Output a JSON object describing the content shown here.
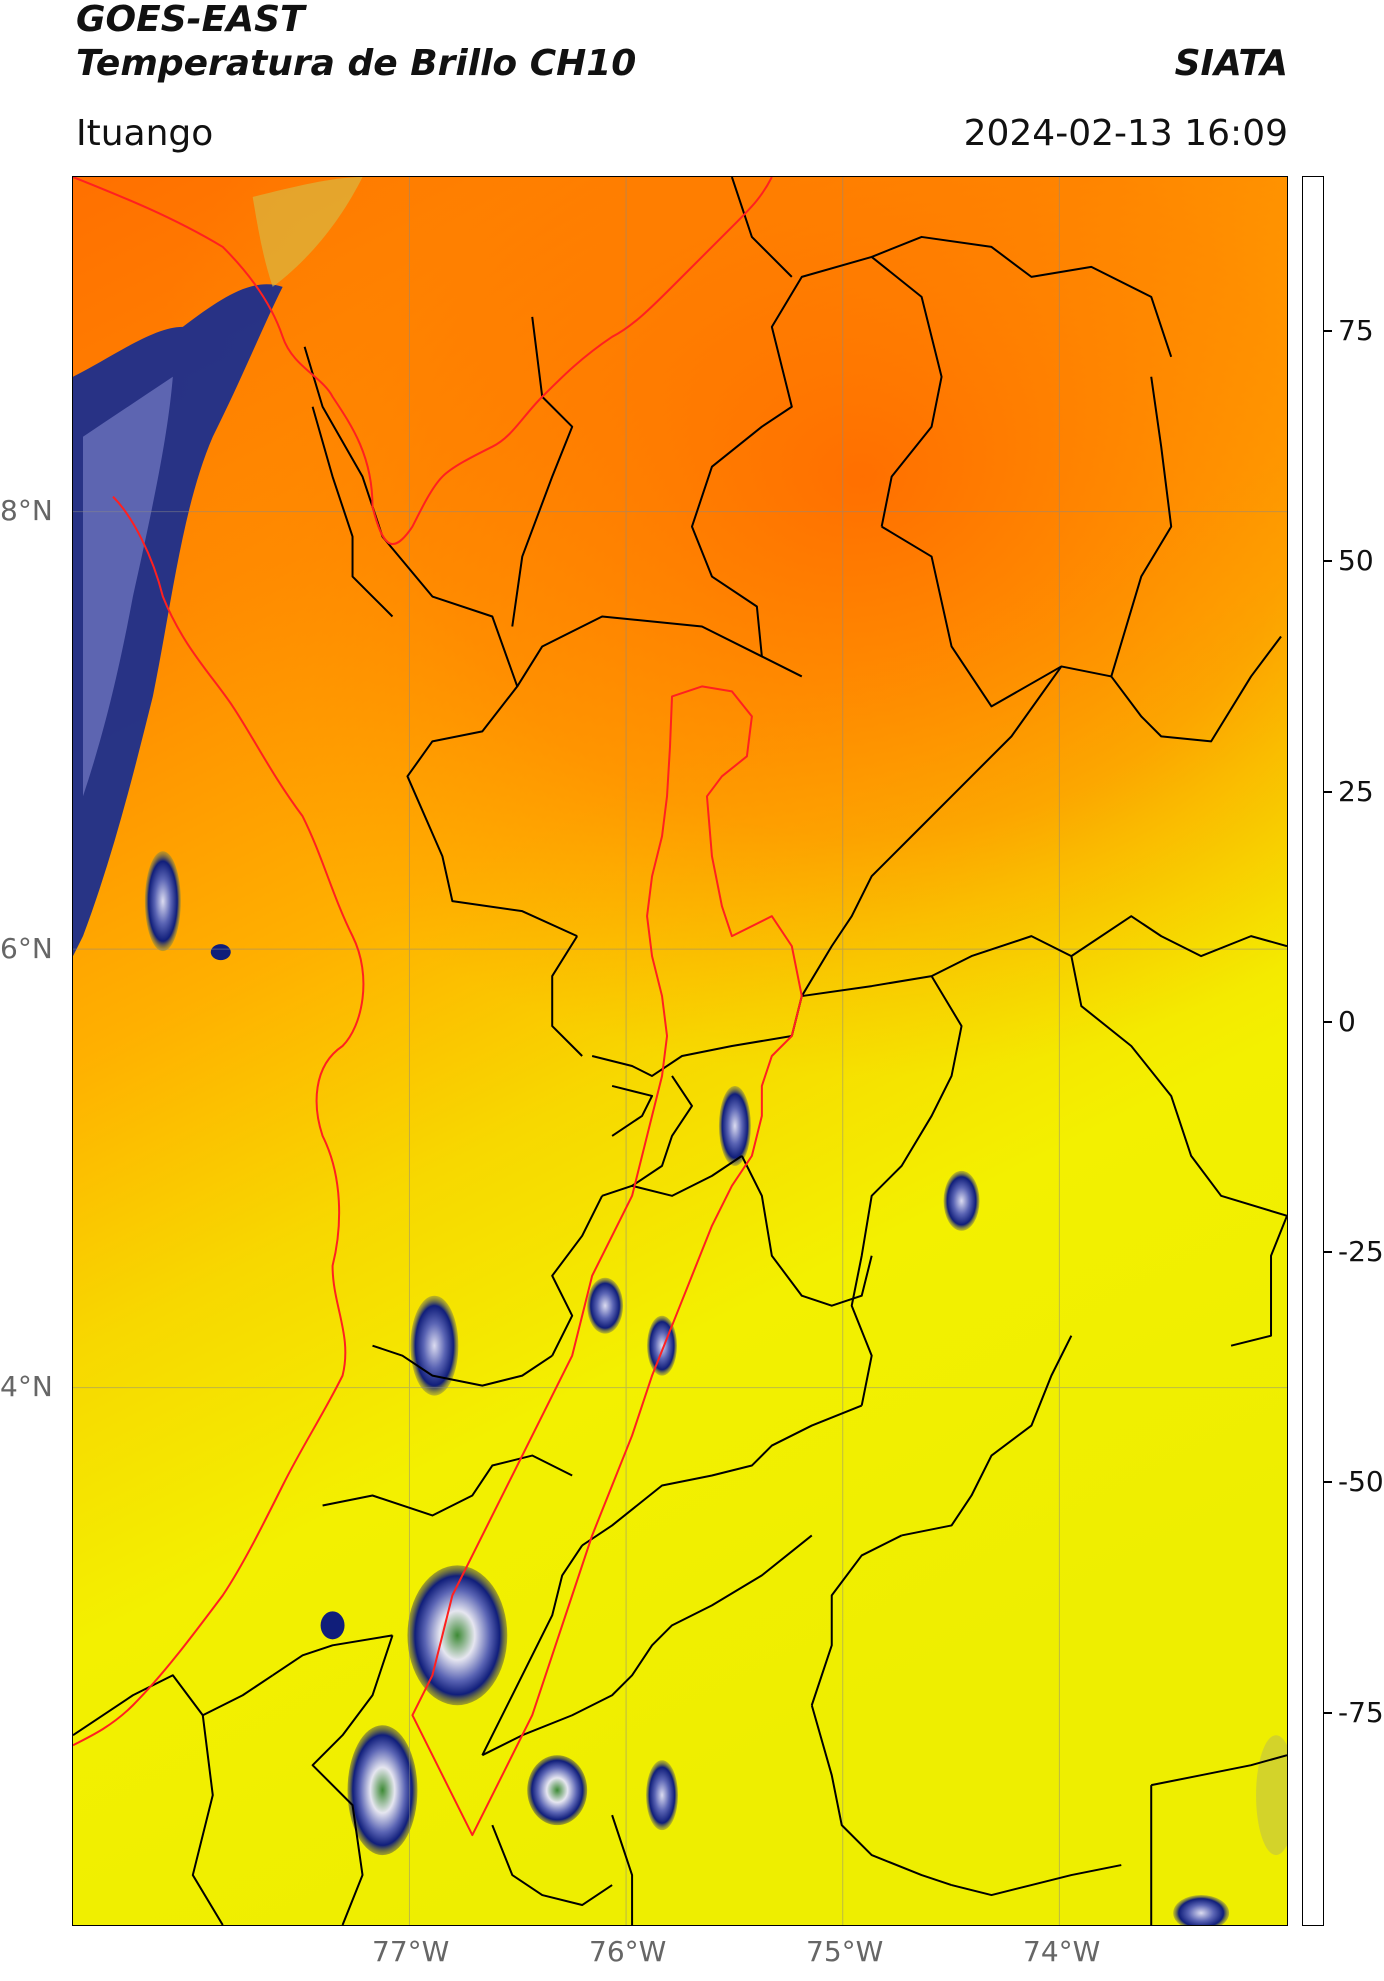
{
  "header": {
    "satellite": "GOES-EAST",
    "product": "Temperatura de Brillo CH10",
    "brand": "SIATA",
    "region": "Ituango",
    "timestamp": "2024-02-13 16:09"
  },
  "map": {
    "lon_range": [
      -78.55,
      -72.95
    ],
    "lat_range": [
      1.95,
      9.55
    ],
    "lat_labels": [
      "8°N",
      "6°N",
      "4°N"
    ],
    "lon_labels": [
      "77°W",
      "76°W",
      "75°W",
      "74°W"
    ],
    "gridlines": true,
    "colors": {
      "warm_orange": "#ff7a00",
      "mid_orange": "#ffaa00",
      "yellow": "#f3f300",
      "cloud_blue": "#1c2e8c",
      "cloud_white": "#e6e6f0",
      "cloud_green": "#3d8a35",
      "boundary": "#000000",
      "basin": "#ff2020"
    }
  },
  "colorbar": {
    "tick_labels": [
      "75",
      "50",
      "25",
      "0",
      "-25",
      "-50",
      "-75"
    ],
    "tick_values": [
      75,
      50,
      25,
      0,
      -25,
      -50,
      -75
    ],
    "vmin": -100,
    "vmax": 90,
    "segments": [
      {
        "from": -100,
        "to": -96,
        "color": "#ffffff"
      },
      {
        "from": -96,
        "to": -90,
        "color": "#00e8e8"
      },
      {
        "from": -90,
        "to": -72,
        "color": "#2f9a80"
      },
      {
        "from": -72,
        "to": -60,
        "color": "#3d8a35"
      },
      {
        "from": -60,
        "to": -50,
        "color": "#c8dcc0"
      },
      {
        "from": -50,
        "to": -38,
        "color": "#dcdcf0"
      },
      {
        "from": -38,
        "to": -28,
        "color": "#5a64b4"
      },
      {
        "from": -28,
        "to": -22,
        "color": "#101e7a"
      },
      {
        "from": -22,
        "to": -18,
        "color": "#6e6e6e"
      },
      {
        "from": -18,
        "to": -14,
        "color": "#c8c83c"
      },
      {
        "from": -14,
        "to": -8,
        "color": "#ffff00"
      },
      {
        "from": -8,
        "to": 0,
        "color": "#ffb400"
      },
      {
        "from": 0,
        "to": 6,
        "color": "#ff6a00"
      },
      {
        "from": 6,
        "to": 9,
        "color": "#ff0000"
      },
      {
        "from": 9,
        "to": 90,
        "color": "#000000"
      }
    ]
  }
}
